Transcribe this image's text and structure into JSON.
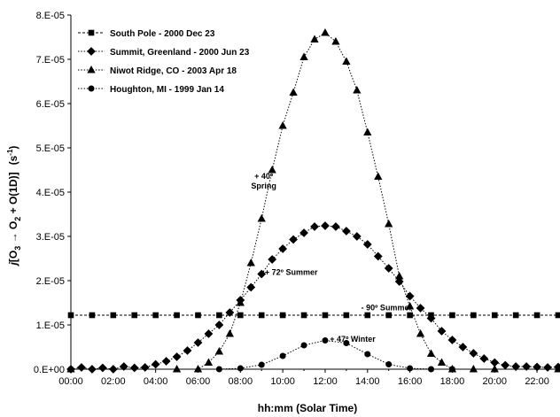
{
  "chart_data": {
    "type": "line",
    "xlabel": "hh:mm (Solar Time)",
    "ylabel_parts": {
      "j": "j",
      "pre": "[O",
      "sub1": "3",
      "arrow": " → O",
      "sub2": "2",
      "post": " + O(1D)]",
      "unit_pre": "(s",
      "unit_sup": "-1",
      "unit_post": ")"
    },
    "xlim": [
      0,
      23
    ],
    "ylim": [
      0,
      8e-05
    ],
    "x_ticks": [
      "00:00",
      "02:00",
      "04:00",
      "06:00",
      "08:00",
      "10:00",
      "12:00",
      "14:00",
      "16:00",
      "18:00",
      "20:00",
      "22:00"
    ],
    "y_ticks": [
      "0.E+00",
      "1.E-05",
      "2.E-05",
      "3.E-05",
      "4.E-05",
      "5.E-05",
      "6.E-05",
      "7.E-05",
      "8.E-05"
    ],
    "legend_position": "top-left",
    "series": [
      {
        "name": "South Pole - 2000 Dec 23",
        "marker": "square",
        "x": [
          0,
          1,
          2,
          3,
          4,
          5,
          6,
          7,
          8,
          9,
          10,
          11,
          12,
          13,
          14,
          15,
          16,
          17,
          18,
          19,
          20,
          21,
          22,
          23
        ],
        "y": [
          1.22e-05,
          1.22e-05,
          1.22e-05,
          1.22e-05,
          1.22e-05,
          1.22e-05,
          1.22e-05,
          1.22e-05,
          1.22e-05,
          1.22e-05,
          1.22e-05,
          1.22e-05,
          1.22e-05,
          1.22e-05,
          1.22e-05,
          1.22e-05,
          1.22e-05,
          1.22e-05,
          1.22e-05,
          1.22e-05,
          1.22e-05,
          1.22e-05,
          1.22e-05,
          1.22e-05
        ]
      },
      {
        "name": "Summit, Greenland - 2000 Jun 23",
        "marker": "diamond",
        "x": [
          0,
          0.5,
          1,
          1.5,
          2,
          2.5,
          3,
          3.5,
          4,
          4.5,
          5,
          5.5,
          6,
          6.5,
          7,
          7.5,
          8,
          8.5,
          9,
          9.5,
          10,
          10.5,
          11,
          11.5,
          12,
          12.5,
          13,
          13.5,
          14,
          14.5,
          15,
          15.5,
          16,
          16.5,
          17,
          17.5,
          18,
          18.5,
          19,
          19.5,
          20,
          20.5,
          21,
          21.5,
          22,
          22.5,
          23
        ],
        "y": [
          0,
          4e-07,
          0,
          3e-07,
          0,
          6e-07,
          3e-07,
          4e-07,
          1.1e-06,
          1.8e-06,
          2.8e-06,
          4.2e-06,
          6e-06,
          8e-06,
          1e-05,
          1.28e-05,
          1.56e-05,
          1.85e-05,
          2.15e-05,
          2.48e-05,
          2.72e-05,
          2.93e-05,
          3.08e-05,
          3.22e-05,
          3.24e-05,
          3.22e-05,
          3.12e-05,
          3e-05,
          2.82e-05,
          2.55e-05,
          2.28e-05,
          1.98e-05,
          1.65e-05,
          1.38e-05,
          1.15e-05,
          8.6e-06,
          6.6e-06,
          5e-06,
          3.6e-06,
          2.4e-06,
          1.5e-06,
          9e-07,
          6e-07,
          6e-07,
          5e-07,
          4e-07,
          5e-07
        ]
      },
      {
        "name": "Niwot Ridge, CO - 2003 Apr 18",
        "marker": "triangle",
        "x": [
          0,
          5,
          6,
          6.5,
          7,
          7.5,
          8,
          8.5,
          9,
          9.5,
          10,
          10.5,
          11,
          11.5,
          12,
          12.5,
          13,
          13.5,
          14,
          14.5,
          15,
          15.5,
          16,
          16.5,
          17,
          17.5,
          18,
          19,
          20,
          23
        ],
        "y": [
          0,
          0,
          0,
          1.5e-06,
          4e-06,
          8e-06,
          1.5e-05,
          2.4e-05,
          3.4e-05,
          4.5e-05,
          5.5e-05,
          6.25e-05,
          7.05e-05,
          7.45e-05,
          7.6e-05,
          7.4e-05,
          6.95e-05,
          6.3e-05,
          5.35e-05,
          4.35e-05,
          3.28e-05,
          2.1e-05,
          1.42e-05,
          8e-06,
          3.5e-06,
          1.5e-06,
          0,
          0,
          0,
          0
        ]
      },
      {
        "name": "Houghton, MI - 1999 Jan 14",
        "marker": "circle",
        "x": [
          0,
          7,
          8,
          9,
          10,
          11,
          12,
          13,
          14,
          15,
          16,
          17,
          18,
          23
        ],
        "y": [
          0,
          0,
          2e-07,
          1e-06,
          3e-06,
          5.4e-06,
          6.5e-06,
          5.9e-06,
          3.4e-06,
          1.1e-06,
          2e-07,
          0,
          0,
          0
        ]
      }
    ],
    "annotations": [
      {
        "lines": [
          "+ 40º",
          "Spring"
        ],
        "x": 9.1,
        "y": 4.3e-05
      },
      {
        "lines": [
          "+ 72º Summer"
        ],
        "x": 10.4,
        "y": 2.13e-05
      },
      {
        "lines": [
          "- 90º Summer"
        ],
        "x": 14.9,
        "y": 1.33e-05
      },
      {
        "lines": [
          "+ 47º Winter"
        ],
        "x": 13.3,
        "y": 6.2e-06
      }
    ]
  }
}
